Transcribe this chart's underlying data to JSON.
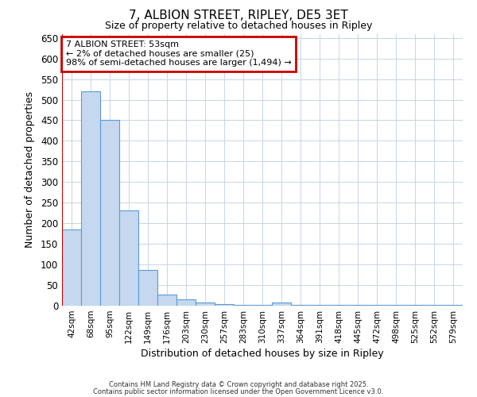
{
  "title": "7, ALBION STREET, RIPLEY, DE5 3ET",
  "subtitle": "Size of property relative to detached houses in Ripley",
  "xlabel": "Distribution of detached houses by size in Ripley",
  "ylabel": "Number of detached properties",
  "categories": [
    "42sqm",
    "68sqm",
    "95sqm",
    "122sqm",
    "149sqm",
    "176sqm",
    "203sqm",
    "230sqm",
    "257sqm",
    "283sqm",
    "310sqm",
    "337sqm",
    "364sqm",
    "391sqm",
    "418sqm",
    "445sqm",
    "472sqm",
    "498sqm",
    "525sqm",
    "552sqm",
    "579sqm"
  ],
  "values": [
    185,
    520,
    450,
    232,
    87,
    27,
    15,
    8,
    3,
    2,
    2,
    8,
    2,
    1,
    1,
    1,
    1,
    1,
    1,
    1,
    2
  ],
  "bar_color": "#c5d8ef",
  "bar_edge_color": "#5b9bd5",
  "annotation_text": "7 ALBION STREET: 53sqm\n← 2% of detached houses are smaller (25)\n98% of semi-detached houses are larger (1,494) →",
  "annotation_box_color": "#ffffff",
  "annotation_box_edge_color": "#cc0000",
  "vline_color": "#cc0000",
  "ylim": [
    0,
    660
  ],
  "yticks": [
    0,
    50,
    100,
    150,
    200,
    250,
    300,
    350,
    400,
    450,
    500,
    550,
    600,
    650
  ],
  "background_color": "#ffffff",
  "plot_bg_color": "#ffffff",
  "grid_color": "#c8d4e8",
  "title_fontsize": 11,
  "subtitle_fontsize": 9,
  "footer_line1": "Contains HM Land Registry data © Crown copyright and database right 2025.",
  "footer_line2": "Contains public sector information licensed under the Open Government Licence v3.0."
}
